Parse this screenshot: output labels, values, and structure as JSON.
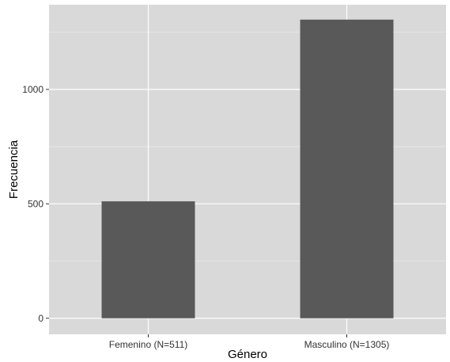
{
  "chart_data": {
    "type": "bar",
    "categories": [
      "Femenino (N=511)",
      "Masculino (N=1305)"
    ],
    "values": [
      511,
      1305
    ],
    "title": "",
    "xlabel": "Género",
    "ylabel": "Frecuencia",
    "ylim": [
      -70,
      1370
    ],
    "yticks": [
      0,
      500,
      1000
    ],
    "grid": true,
    "legend": "none",
    "colors": {
      "bar": "#595959",
      "panel": "#d9d9d9",
      "grid_major": "#ffffff",
      "grid_minor": "#ececec"
    }
  }
}
